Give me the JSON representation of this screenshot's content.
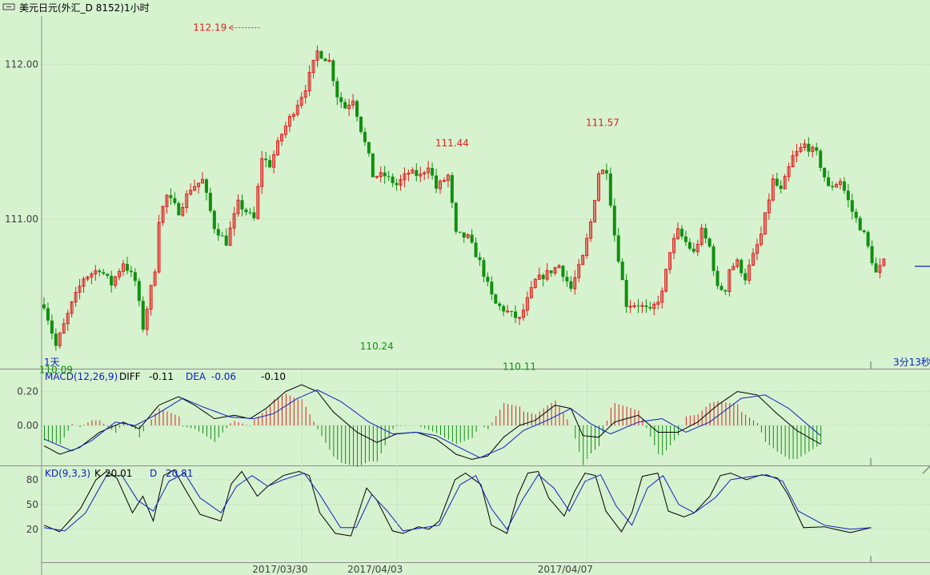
{
  "header": {
    "title": "美元日元(外汇_D 8152)1小时"
  },
  "colors": {
    "background": "#d6f2cf",
    "up": "#e02020",
    "down": "#109010",
    "black_line": "#000000",
    "blue_line": "#1020c0",
    "grid": "#b8c8b0",
    "axis": "#808080"
  },
  "main_panel": {
    "bar_unit_label": "1天",
    "timer_label": "3分13秒",
    "y_ticks": [
      {
        "value": 112.0,
        "label": "112.00"
      },
      {
        "value": 111.0,
        "label": "111.00"
      }
    ],
    "annotations": [
      {
        "text": "112.19",
        "value": 112.19,
        "bar": 55,
        "kind": "high",
        "arrow": true
      },
      {
        "text": "111.44",
        "value": 111.44,
        "bar": 103,
        "kind": "high"
      },
      {
        "text": "111.57",
        "value": 111.57,
        "bar": 141,
        "kind": "high"
      },
      {
        "text": "110.24",
        "value": 110.24,
        "bar": 84,
        "kind": "low"
      },
      {
        "text": "110.11",
        "value": 110.11,
        "bar": 120,
        "kind": "low"
      },
      {
        "text": "110.09",
        "value": 110.09,
        "bar": 3,
        "kind": "low"
      }
    ]
  },
  "macd_panel": {
    "legend": {
      "name": "MACD(12,26,9)",
      "diff_label": "DIFF",
      "diff_value": "-0.11",
      "dea_label": "DEA",
      "dea_value": "-0.06",
      "macd_value": "-0.10"
    },
    "y_ticks": [
      {
        "value": 0.2,
        "label": "0.20"
      },
      {
        "value": 0.0,
        "label": "0.00"
      }
    ]
  },
  "kd_panel": {
    "legend": {
      "name": "KD(9,3,3)",
      "k_label": "K",
      "k_value": "20.01",
      "d_label": "D",
      "d_value": "20.81"
    },
    "y_ticks": [
      {
        "value": 80,
        "label": "80"
      },
      {
        "value": 50,
        "label": "50"
      },
      {
        "value": 20,
        "label": "20"
      }
    ]
  },
  "x_axis": {
    "date_labels": [
      {
        "bar": 34,
        "label": "2017/03/30"
      },
      {
        "bar": 58,
        "label": "2017/04/03"
      },
      {
        "bar": 106,
        "label": "2017/04/07"
      }
    ]
  },
  "chart_data": {
    "type": "candlestick",
    "y_range": [
      110.05,
      112.25
    ],
    "close_anchors": [
      [
        0,
        110.45
      ],
      [
        3,
        110.18
      ],
      [
        7,
        110.45
      ],
      [
        10,
        110.62
      ],
      [
        14,
        110.68
      ],
      [
        17,
        110.58
      ],
      [
        20,
        110.72
      ],
      [
        23,
        110.6
      ],
      [
        25,
        110.3
      ],
      [
        28,
        110.68
      ],
      [
        29,
        111.0
      ],
      [
        31,
        111.15
      ],
      [
        34,
        111.05
      ],
      [
        37,
        111.2
      ],
      [
        40,
        111.25
      ],
      [
        43,
        110.95
      ],
      [
        46,
        110.85
      ],
      [
        49,
        111.1
      ],
      [
        53,
        111.0
      ],
      [
        55,
        111.4
      ],
      [
        57,
        111.35
      ],
      [
        60,
        111.55
      ],
      [
        63,
        111.7
      ],
      [
        66,
        111.85
      ],
      [
        69,
        112.08
      ],
      [
        72,
        112.02
      ],
      [
        74,
        111.8
      ],
      [
        76,
        111.72
      ],
      [
        78,
        111.78
      ],
      [
        80,
        111.58
      ],
      [
        82,
        111.4
      ],
      [
        83,
        111.28
      ],
      [
        86,
        111.28
      ],
      [
        89,
        111.22
      ],
      [
        92,
        111.3
      ],
      [
        95,
        111.28
      ],
      [
        97,
        111.35
      ],
      [
        99,
        111.2
      ],
      [
        102,
        111.28
      ],
      [
        104,
        110.9
      ],
      [
        107,
        110.88
      ],
      [
        110,
        110.72
      ],
      [
        113,
        110.5
      ],
      [
        114,
        110.45
      ],
      [
        117,
        110.4
      ],
      [
        120,
        110.35
      ],
      [
        124,
        110.6
      ],
      [
        127,
        110.65
      ],
      [
        130,
        110.7
      ],
      [
        133,
        110.55
      ],
      [
        136,
        110.75
      ],
      [
        138,
        110.98
      ],
      [
        140,
        111.3
      ],
      [
        142,
        111.32
      ],
      [
        144,
        110.9
      ],
      [
        147,
        110.45
      ],
      [
        150,
        110.45
      ],
      [
        153,
        110.4
      ],
      [
        156,
        110.52
      ],
      [
        158,
        110.8
      ],
      [
        160,
        110.92
      ],
      [
        162,
        110.85
      ],
      [
        164,
        110.78
      ],
      [
        166,
        110.92
      ],
      [
        168,
        110.82
      ],
      [
        170,
        110.55
      ],
      [
        172,
        110.55
      ],
      [
        173,
        110.68
      ],
      [
        175,
        110.72
      ],
      [
        177,
        110.62
      ],
      [
        181,
        110.9
      ],
      [
        184,
        111.25
      ],
      [
        186,
        111.18
      ],
      [
        189,
        111.4
      ],
      [
        192,
        111.48
      ],
      [
        195,
        111.42
      ],
      [
        198,
        111.2
      ],
      [
        201,
        111.25
      ],
      [
        204,
        111.05
      ],
      [
        207,
        110.9
      ],
      [
        210,
        110.65
      ],
      [
        212,
        110.72
      ]
    ],
    "macd": {
      "diff_anchors": [
        [
          0,
          -0.12
        ],
        [
          4,
          -0.17
        ],
        [
          9,
          -0.13
        ],
        [
          14,
          -0.04
        ],
        [
          20,
          0.02
        ],
        [
          24,
          -0.02
        ],
        [
          29,
          0.12
        ],
        [
          34,
          0.17
        ],
        [
          38,
          0.12
        ],
        [
          43,
          0.04
        ],
        [
          48,
          0.06
        ],
        [
          52,
          0.04
        ],
        [
          56,
          0.1
        ],
        [
          61,
          0.2
        ],
        [
          65,
          0.24
        ],
        [
          69,
          0.2
        ],
        [
          73,
          0.08
        ],
        [
          79,
          -0.04
        ],
        [
          84,
          -0.1
        ],
        [
          89,
          -0.05
        ],
        [
          94,
          -0.04
        ],
        [
          99,
          -0.08
        ],
        [
          104,
          -0.17
        ],
        [
          108,
          -0.2
        ],
        [
          112,
          -0.18
        ],
        [
          116,
          -0.07
        ],
        [
          120,
          0
        ],
        [
          124,
          0.03
        ],
        [
          129,
          0.12
        ],
        [
          133,
          0.1
        ],
        [
          136,
          -0.06
        ],
        [
          140,
          -0.07
        ],
        [
          144,
          0.02
        ],
        [
          150,
          0.06
        ],
        [
          155,
          -0.04
        ],
        [
          160,
          -0.04
        ],
        [
          165,
          0.02
        ],
        [
          170,
          0.12
        ],
        [
          175,
          0.2
        ],
        [
          180,
          0.18
        ],
        [
          185,
          0.07
        ],
        [
          190,
          -0.03
        ],
        [
          196,
          -0.11
        ]
      ],
      "dea_anchors": [
        [
          0,
          -0.08
        ],
        [
          7,
          -0.15
        ],
        [
          12,
          -0.09
        ],
        [
          18,
          0.02
        ],
        [
          23,
          0
        ],
        [
          28,
          0.06
        ],
        [
          35,
          0.16
        ],
        [
          40,
          0.11
        ],
        [
          47,
          0.05
        ],
        [
          53,
          0.04
        ],
        [
          58,
          0.07
        ],
        [
          64,
          0.16
        ],
        [
          69,
          0.21
        ],
        [
          75,
          0.14
        ],
        [
          82,
          0.02
        ],
        [
          88,
          -0.05
        ],
        [
          94,
          -0.04
        ],
        [
          99,
          -0.06
        ],
        [
          104,
          -0.12
        ],
        [
          110,
          -0.19
        ],
        [
          116,
          -0.13
        ],
        [
          121,
          -0.03
        ],
        [
          127,
          0.03
        ],
        [
          133,
          0.1
        ],
        [
          138,
          0.01
        ],
        [
          143,
          -0.05
        ],
        [
          150,
          0.02
        ],
        [
          156,
          0.04
        ],
        [
          162,
          -0.04
        ],
        [
          168,
          0.02
        ],
        [
          176,
          0.16
        ],
        [
          182,
          0.18
        ],
        [
          188,
          0.1
        ],
        [
          196,
          -0.06
        ]
      ]
    },
    "kd": {
      "k_anchors": [
        [
          0,
          25
        ],
        [
          3,
          17
        ],
        [
          7,
          45
        ],
        [
          10,
          80
        ],
        [
          12,
          90
        ],
        [
          14,
          82
        ],
        [
          17,
          40
        ],
        [
          19,
          60
        ],
        [
          21,
          30
        ],
        [
          23,
          85
        ],
        [
          25,
          92
        ],
        [
          27,
          70
        ],
        [
          30,
          38
        ],
        [
          34,
          30
        ],
        [
          36,
          75
        ],
        [
          38,
          90
        ],
        [
          41,
          60
        ],
        [
          43,
          72
        ],
        [
          46,
          85
        ],
        [
          49,
          90
        ],
        [
          51,
          85
        ],
        [
          53,
          40
        ],
        [
          56,
          15
        ],
        [
          59,
          12
        ],
        [
          62,
          70
        ],
        [
          64,
          55
        ],
        [
          67,
          18
        ],
        [
          69,
          15
        ],
        [
          72,
          23
        ],
        [
          74,
          20
        ],
        [
          76,
          30
        ],
        [
          79,
          80
        ],
        [
          81,
          88
        ],
        [
          84,
          74
        ],
        [
          86,
          25
        ],
        [
          89,
          15
        ],
        [
          91,
          60
        ],
        [
          93,
          88
        ],
        [
          95,
          90
        ],
        [
          97,
          58
        ],
        [
          100,
          36
        ],
        [
          102,
          66
        ],
        [
          104,
          88
        ],
        [
          106,
          85
        ],
        [
          108,
          42
        ],
        [
          111,
          17
        ],
        [
          113,
          40
        ],
        [
          115,
          84
        ],
        [
          118,
          88
        ],
        [
          120,
          42
        ],
        [
          123,
          35
        ],
        [
          125,
          40
        ],
        [
          128,
          60
        ],
        [
          130,
          85
        ],
        [
          132,
          88
        ],
        [
          135,
          80
        ],
        [
          138,
          86
        ],
        [
          141,
          82
        ],
        [
          143,
          62
        ],
        [
          146,
          22
        ],
        [
          150,
          23
        ],
        [
          155,
          16
        ],
        [
          159,
          22
        ]
      ],
      "d_anchors": [
        [
          0,
          22
        ],
        [
          4,
          18
        ],
        [
          8,
          40
        ],
        [
          12,
          85
        ],
        [
          15,
          85
        ],
        [
          18,
          55
        ],
        [
          21,
          42
        ],
        [
          24,
          78
        ],
        [
          27,
          88
        ],
        [
          30,
          58
        ],
        [
          34,
          40
        ],
        [
          37,
          72
        ],
        [
          40,
          85
        ],
        [
          43,
          72
        ],
        [
          46,
          80
        ],
        [
          50,
          88
        ],
        [
          53,
          62
        ],
        [
          57,
          22
        ],
        [
          60,
          22
        ],
        [
          63,
          62
        ],
        [
          66,
          42
        ],
        [
          69,
          18
        ],
        [
          73,
          22
        ],
        [
          76,
          25
        ],
        [
          80,
          74
        ],
        [
          83,
          85
        ],
        [
          86,
          45
        ],
        [
          89,
          20
        ],
        [
          92,
          56
        ],
        [
          95,
          86
        ],
        [
          98,
          70
        ],
        [
          101,
          42
        ],
        [
          104,
          78
        ],
        [
          107,
          86
        ],
        [
          110,
          48
        ],
        [
          113,
          25
        ],
        [
          116,
          70
        ],
        [
          119,
          85
        ],
        [
          122,
          50
        ],
        [
          125,
          40
        ],
        [
          129,
          58
        ],
        [
          132,
          80
        ],
        [
          136,
          84
        ],
        [
          139,
          86
        ],
        [
          142,
          78
        ],
        [
          145,
          42
        ],
        [
          150,
          25
        ],
        [
          155,
          20
        ],
        [
          159,
          22
        ]
      ]
    }
  }
}
